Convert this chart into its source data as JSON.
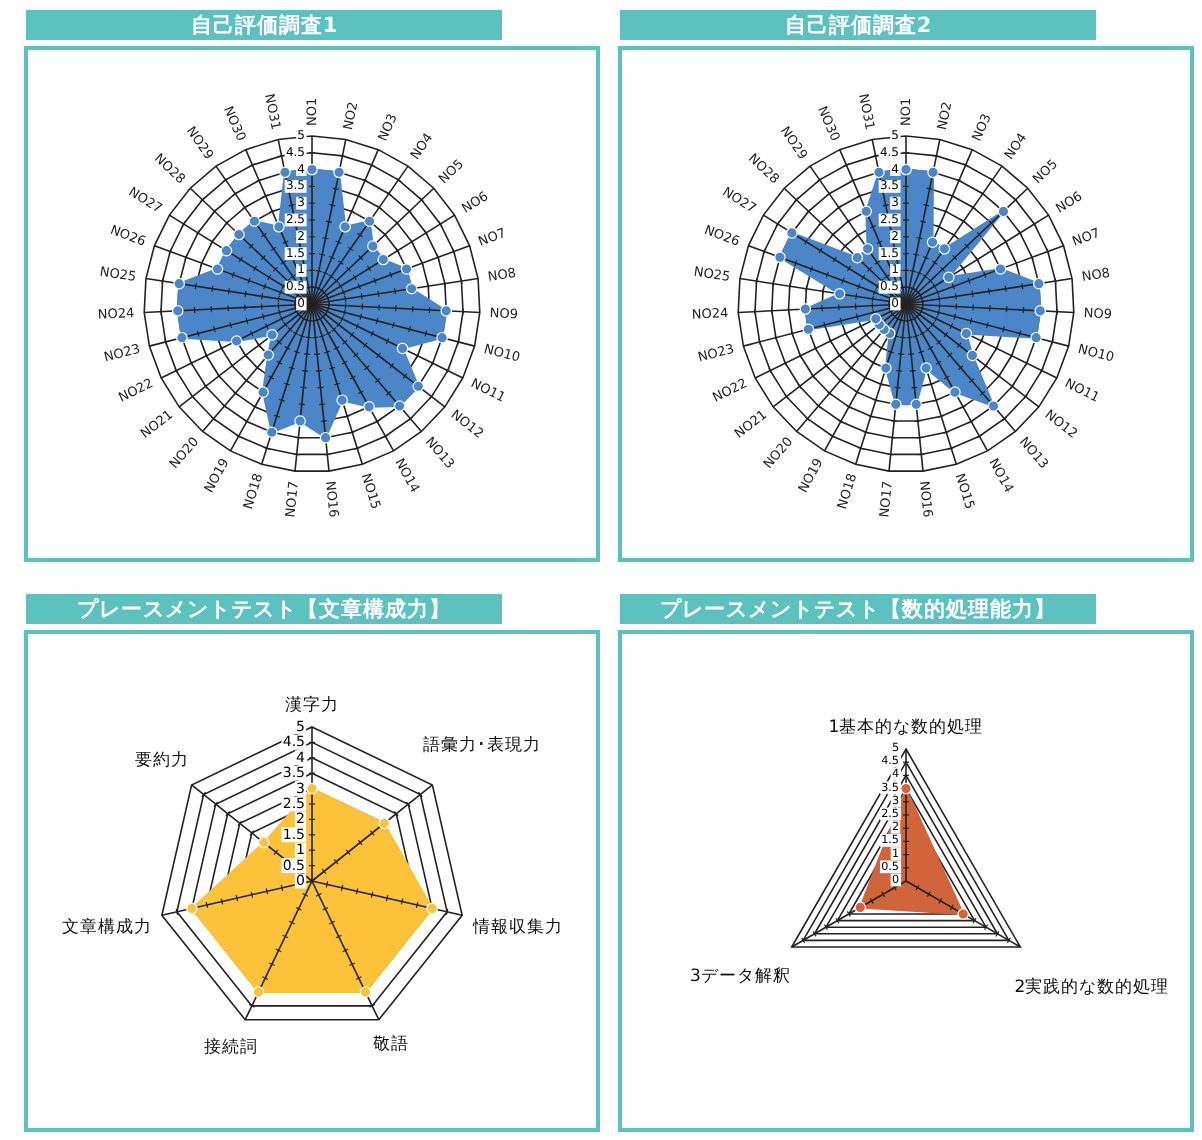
{
  "chart_data": [
    {
      "type": "radar",
      "title": "自己評価調査1",
      "categories": [
        "NO1",
        "NO2",
        "NO3",
        "NO4",
        "NO5",
        "NO6",
        "NO7",
        "NO8",
        "NO9",
        "NO10",
        "NO11",
        "NO12",
        "NO13",
        "NO14",
        "NO15",
        "NO16",
        "NO17",
        "NO18",
        "NO19",
        "NO20",
        "NO21",
        "NO22",
        "NO23",
        "NO24",
        "NO25",
        "NO26",
        "NO27",
        "NO28",
        "NO29",
        "NO30",
        "NO31"
      ],
      "series": [
        {
          "color": "#4a86c8",
          "values": [
            4,
            4,
            2.5,
            3,
            2.5,
            2.5,
            3,
            3,
            4,
            4,
            3,
            4,
            4,
            3.5,
            3,
            4,
            3.5,
            4,
            3,
            2,
            1.5,
            2.5,
            4,
            4,
            4,
            3,
            3,
            3,
            3,
            2.5,
            4
          ]
        }
      ],
      "ylim": [
        0,
        5
      ],
      "yticks": [
        0,
        0.5,
        1,
        1.5,
        2,
        2.5,
        3,
        3.5,
        4,
        4.5,
        5
      ],
      "grid": true,
      "marker": "circle"
    },
    {
      "type": "radar",
      "title": "自己評価調査2",
      "categories": [
        "NO1",
        "NO2",
        "NO3",
        "NO4",
        "NO5",
        "NO6",
        "NO7",
        "NO8",
        "NO9",
        "NO10",
        "NO11",
        "NO12",
        "NO13",
        "NO14",
        "NO15",
        "NO16",
        "NO17",
        "NO18",
        "NO19",
        "NO20",
        "NO21",
        "NO22",
        "NO23",
        "NO24",
        "NO25",
        "NO26",
        "NO27",
        "NO28",
        "NO29",
        "NO30",
        "NO31"
      ],
      "series": [
        {
          "color": "#4a86c8",
          "values": [
            4,
            4,
            2,
            2,
            4,
            1.5,
            3,
            4,
            4,
            4,
            2,
            2.5,
            4,
            3,
            2,
            3,
            3,
            2,
            1,
            1,
            1,
            1,
            3,
            3,
            2,
            4,
            4,
            2,
            2,
            3,
            4
          ]
        }
      ],
      "ylim": [
        0,
        5
      ],
      "yticks": [
        0,
        0.5,
        1,
        1.5,
        2,
        2.5,
        3,
        3.5,
        4,
        4.5,
        5
      ],
      "grid": true,
      "marker": "circle"
    },
    {
      "type": "radar",
      "title": "プレースメントテスト【文章構成力】",
      "categories": [
        "漢字力",
        "語彙力･表現力",
        "情報収集力",
        "敬語",
        "接続詞",
        "文章構成力",
        "要約力"
      ],
      "series": [
        {
          "color": "#fbc23a",
          "values": [
            3,
            3,
            4,
            4,
            4,
            4,
            2
          ]
        }
      ],
      "ylim": [
        0,
        5
      ],
      "yticks": [
        0,
        0.5,
        1,
        1.5,
        2,
        2.5,
        3,
        3.5,
        4,
        4.5,
        5
      ],
      "grid": true,
      "marker": "circle"
    },
    {
      "type": "radar",
      "title": "プレースメントテスト【数的処理能力】",
      "categories": [
        "1基本的な数的処理",
        "2実践的な数的処理",
        "3データ解釈"
      ],
      "series": [
        {
          "color": "#d2643a",
          "values": [
            3.5,
            2.5,
            2
          ]
        }
      ],
      "ylim": [
        0,
        5
      ],
      "yticks": [
        0,
        0.5,
        1,
        1.5,
        2,
        2.5,
        3,
        3.5,
        4,
        4.5,
        5
      ],
      "grid": true,
      "marker": "circle"
    }
  ]
}
